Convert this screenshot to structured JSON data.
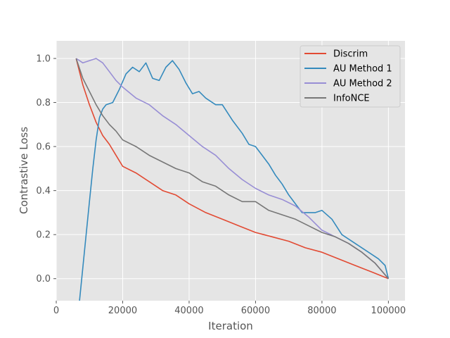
{
  "chart_data": {
    "type": "line",
    "xlabel": "Iteration",
    "ylabel": "Contrastive Loss",
    "xlim": [
      0,
      105000
    ],
    "ylim": [
      -0.1,
      1.08
    ],
    "xticks": [
      0,
      20000,
      40000,
      60000,
      80000,
      100000
    ],
    "yticks": [
      0.0,
      0.2,
      0.4,
      0.6,
      0.8,
      1.0
    ],
    "xtick_labels": [
      "0",
      "20000",
      "40000",
      "60000",
      "80000",
      "100000"
    ],
    "ytick_labels": [
      "0.0",
      "0.2",
      "0.4",
      "0.6",
      "0.8",
      "1.0"
    ],
    "grid": true,
    "legend_position": "top-right",
    "series": [
      {
        "name": "Discrim",
        "color": "#e24a33",
        "x": [
          6000,
          8000,
          10000,
          12000,
          14000,
          16000,
          18000,
          20000,
          24000,
          28000,
          32000,
          36000,
          40000,
          45000,
          50000,
          55000,
          60000,
          65000,
          70000,
          75000,
          80000,
          85000,
          90000,
          95000,
          100000
        ],
        "y": [
          1.0,
          0.88,
          0.79,
          0.71,
          0.65,
          0.61,
          0.56,
          0.51,
          0.48,
          0.44,
          0.4,
          0.38,
          0.34,
          0.3,
          0.27,
          0.24,
          0.21,
          0.19,
          0.17,
          0.14,
          0.12,
          0.09,
          0.06,
          0.03,
          0.0
        ]
      },
      {
        "name": "AU Method 1",
        "color": "#348abd",
        "x": [
          7000,
          8000,
          9000,
          10000,
          11000,
          12000,
          13000,
          14000,
          15000,
          17000,
          19000,
          21000,
          23000,
          25000,
          27000,
          29000,
          31000,
          33000,
          35000,
          37000,
          39000,
          41000,
          43000,
          45000,
          48000,
          50000,
          53000,
          56000,
          58000,
          60000,
          62000,
          64000,
          66000,
          68000,
          70000,
          72000,
          74000,
          76000,
          78000,
          80000,
          83000,
          86000,
          89000,
          92000,
          95000,
          97000,
          99000,
          100000
        ],
        "y": [
          -0.1,
          0.05,
          0.2,
          0.35,
          0.5,
          0.63,
          0.73,
          0.77,
          0.79,
          0.8,
          0.86,
          0.93,
          0.96,
          0.94,
          0.98,
          0.91,
          0.9,
          0.96,
          0.99,
          0.95,
          0.89,
          0.84,
          0.85,
          0.82,
          0.79,
          0.79,
          0.72,
          0.66,
          0.61,
          0.6,
          0.56,
          0.52,
          0.47,
          0.43,
          0.38,
          0.34,
          0.3,
          0.3,
          0.3,
          0.31,
          0.27,
          0.2,
          0.17,
          0.14,
          0.11,
          0.09,
          0.06,
          0.0
        ]
      },
      {
        "name": "AU Method 2",
        "color": "#988ed5",
        "x": [
          6000,
          7000,
          8000,
          10000,
          12000,
          14000,
          16000,
          18000,
          20000,
          24000,
          28000,
          32000,
          36000,
          40000,
          44000,
          48000,
          52000,
          56000,
          60000,
          64000,
          68000,
          72000,
          76000,
          80000,
          84000,
          88000,
          92000,
          96000,
          100000
        ],
        "y": [
          1.0,
          0.99,
          0.98,
          0.99,
          1.0,
          0.98,
          0.94,
          0.9,
          0.87,
          0.82,
          0.79,
          0.74,
          0.7,
          0.65,
          0.6,
          0.56,
          0.5,
          0.45,
          0.41,
          0.38,
          0.36,
          0.33,
          0.28,
          0.22,
          0.19,
          0.16,
          0.12,
          0.07,
          0.0
        ]
      },
      {
        "name": "InfoNCE",
        "color": "#777777",
        "x": [
          6000,
          8000,
          10000,
          12000,
          14000,
          16000,
          18000,
          20000,
          24000,
          28000,
          32000,
          36000,
          40000,
          44000,
          48000,
          52000,
          56000,
          60000,
          64000,
          68000,
          72000,
          76000,
          80000,
          84000,
          88000,
          92000,
          96000,
          100000
        ],
        "y": [
          1.0,
          0.91,
          0.85,
          0.79,
          0.74,
          0.7,
          0.67,
          0.63,
          0.6,
          0.56,
          0.53,
          0.5,
          0.48,
          0.44,
          0.42,
          0.38,
          0.35,
          0.35,
          0.31,
          0.29,
          0.27,
          0.24,
          0.21,
          0.19,
          0.16,
          0.12,
          0.07,
          0.0
        ]
      }
    ]
  }
}
